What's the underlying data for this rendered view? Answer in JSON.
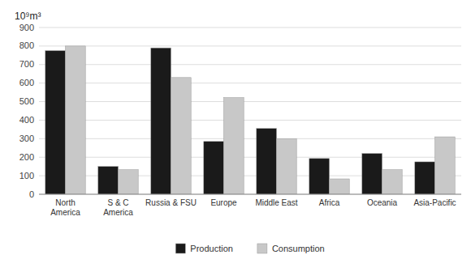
{
  "chart_data": {
    "type": "bar",
    "ylabel": "10⁹m³",
    "categories": [
      "North\nAmerica",
      "S & C\nAmerica",
      "Russia & FSU",
      "Europe",
      "Middle East",
      "Africa",
      "Oceania",
      "Asia-Pacific"
    ],
    "series": [
      {
        "name": "Production",
        "color": "#1a1a1a",
        "values": [
          775,
          150,
          790,
          285,
          355,
          193,
          220,
          175
        ]
      },
      {
        "name": "Consumption",
        "color": "#c8c8c8",
        "values": [
          800,
          133,
          630,
          522,
          300,
          83,
          133,
          310
        ]
      }
    ],
    "ylim": [
      0,
      900
    ],
    "yticks": [
      0,
      100,
      200,
      300,
      400,
      500,
      600,
      700,
      800,
      900
    ],
    "grid": true,
    "legend": "bottom"
  }
}
